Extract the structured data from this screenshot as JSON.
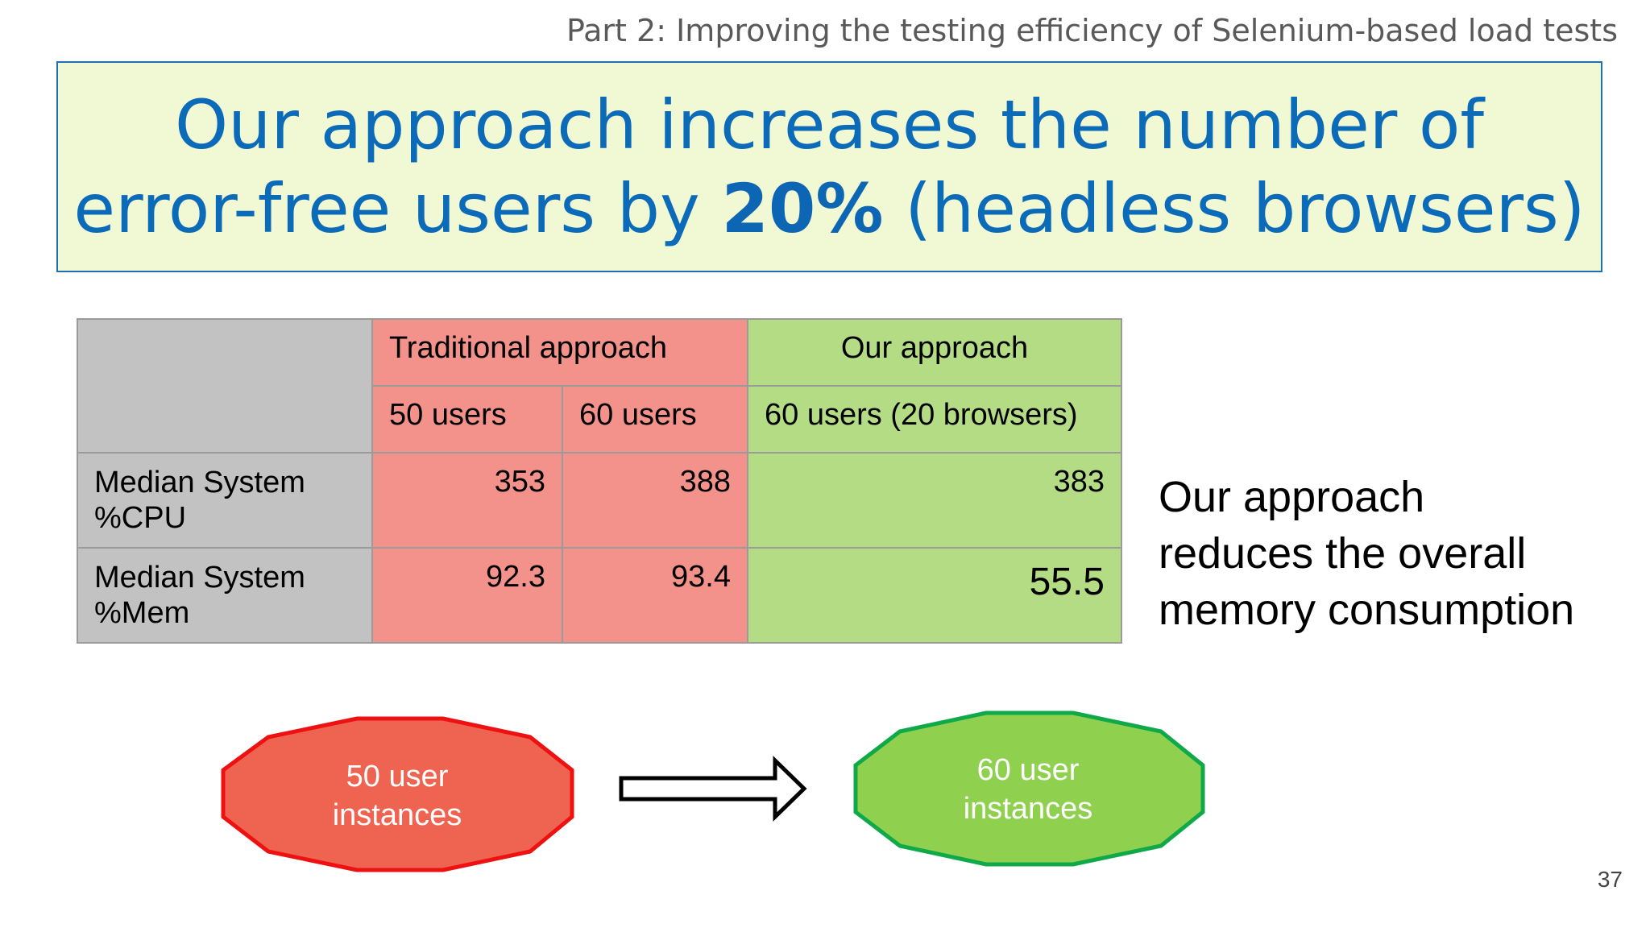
{
  "header": {
    "part_title": "Part 2: Improving the testing efficiency of Selenium-based load tests"
  },
  "headline": {
    "line1": "Our approach increases the number of",
    "line2_before": "error-free users by ",
    "line2_bold": "20%",
    "line2_after": " (headless browsers)"
  },
  "table": {
    "group_headers": [
      "Traditional approach",
      "Our approach"
    ],
    "sub_headers": [
      "50 users",
      "60 users",
      "60 users (20 browsers)"
    ],
    "rows": [
      {
        "label": "Median System %CPU",
        "values": [
          "353",
          "388",
          "383"
        ]
      },
      {
        "label": "Median System %Mem",
        "values": [
          "92.3",
          "93.4",
          "55.5"
        ]
      }
    ]
  },
  "side_note": {
    "line1": "Our approach",
    "line2": "reduces the overall",
    "line3": "memory consumption"
  },
  "diagram": {
    "left_label_line1": "50 user",
    "left_label_line2": "instances",
    "right_label_line1": "60 user",
    "right_label_line2": "instances",
    "left_fill": "#ef6351",
    "left_stroke": "#ee1111",
    "right_fill": "#8fd14f",
    "right_stroke": "#10a94a"
  },
  "page_number": "37"
}
